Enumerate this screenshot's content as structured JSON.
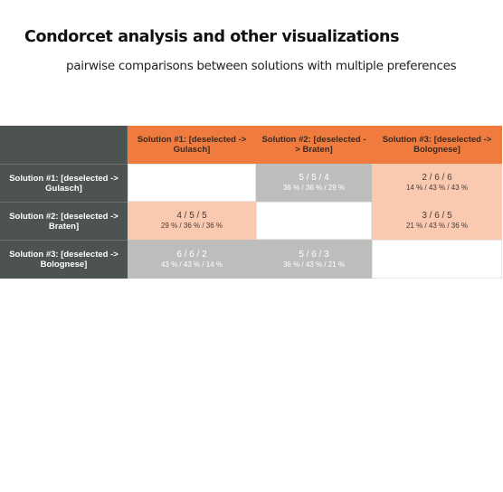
{
  "title": "Condorcet analysis and other visualizations",
  "subtitle": "pairwise comparisons between solutions with multiple preferences",
  "columns": [
    "Solution #1: [deselected -> Gulasch]",
    "Solution #2: [deselected -> Braten]",
    "Solution #3: [deselected -> Bolognese]"
  ],
  "rows": [
    {
      "label": "Solution #1: [deselected -> Gulasch]",
      "cells": [
        {
          "votes": "",
          "percent": ""
        },
        {
          "votes": "5 / 5 / 4",
          "percent": "36 % / 36 % / 29 %"
        },
        {
          "votes": "2 / 6 / 6",
          "percent": "14 % / 43 % / 43 %"
        }
      ]
    },
    {
      "label": "Solution #2: [deselected -> Braten]",
      "cells": [
        {
          "votes": "4 / 5 / 5",
          "percent": "29 % / 36 % / 36 %"
        },
        {
          "votes": "",
          "percent": ""
        },
        {
          "votes": "3 / 6 / 5",
          "percent": "21 % / 43 % / 36 %"
        }
      ]
    },
    {
      "label": "Solution #3: [deselected -> Bolognese]",
      "cells": [
        {
          "votes": "6 / 6 / 2",
          "percent": "43 % / 43 % / 14 %"
        },
        {
          "votes": "5 / 6 / 3",
          "percent": "36 % / 43 % / 21 %"
        },
        {
          "votes": "",
          "percent": ""
        }
      ]
    }
  ],
  "colors": {
    "header_orange": "#ef7b3e",
    "header_dark": "#4d5350",
    "cell_gray": "#bdbdbb",
    "cell_light_orange": "#f9c9b0"
  }
}
